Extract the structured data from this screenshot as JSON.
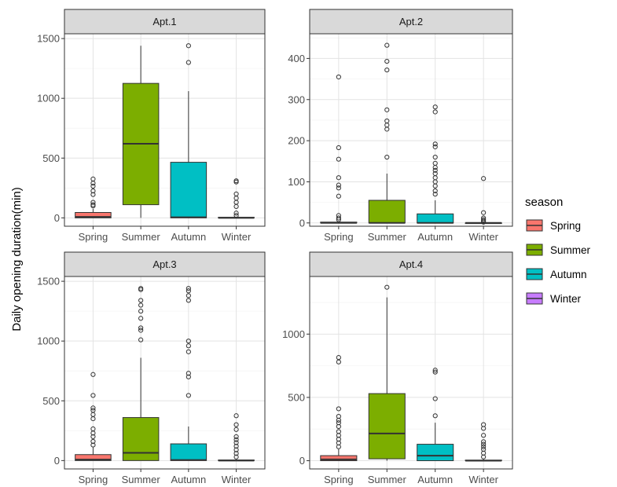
{
  "chart_data": {
    "type": "boxplot",
    "ylabel": "Daily opening duration(min)",
    "categories": [
      "Spring",
      "Summer",
      "Autumn",
      "Winter"
    ],
    "colors": {
      "Spring": "#F8766D",
      "Summer": "#7CAE00",
      "Autumn": "#00BFC4",
      "Winter": "#C77CFF"
    },
    "legend": {
      "title": "season",
      "entries": [
        "Spring",
        "Summer",
        "Autumn",
        "Winter"
      ],
      "placement": "right"
    },
    "grid": true,
    "panels": [
      {
        "title": "Apt.1",
        "ylim": [
          -70,
          1540
        ],
        "yticks": [
          0,
          500,
          1000,
          1500
        ],
        "boxes": {
          "Spring": {
            "q1": 0,
            "median": 8,
            "q3": 45,
            "low": 0,
            "high": 75,
            "outliers": [
              100,
              110,
              130,
              195,
              225,
              265,
              290,
              325
            ]
          },
          "Summer": {
            "q1": 110,
            "median": 620,
            "q3": 1125,
            "low": 0,
            "high": 1440,
            "outliers": []
          },
          "Autumn": {
            "q1": 0,
            "median": 5,
            "q3": 465,
            "low": 0,
            "high": 1060,
            "outliers": [
              1300,
              1440
            ]
          },
          "Winter": {
            "q1": 0,
            "median": 0,
            "q3": 5,
            "low": 0,
            "high": 10,
            "outliers": [
              20,
              40,
              95,
              130,
              165,
              200,
              300,
              310
            ]
          }
        }
      },
      {
        "title": "Apt.2",
        "ylim": [
          -8,
          460
        ],
        "yticks": [
          0,
          100,
          200,
          300,
          400
        ],
        "boxes": {
          "Spring": {
            "q1": 0,
            "median": 0,
            "q3": 2,
            "low": 0,
            "high": 4,
            "outliers": [
              8,
              12,
              18,
              65,
              85,
              92,
              110,
              155,
              183,
              355
            ]
          },
          "Summer": {
            "q1": 0,
            "median": 0,
            "q3": 55,
            "low": 0,
            "high": 120,
            "outliers": [
              160,
              228,
              238,
              248,
              275,
              372,
              393,
              432
            ]
          },
          "Autumn": {
            "q1": 0,
            "median": 0,
            "q3": 22,
            "low": 0,
            "high": 55,
            "outliers": [
              70,
              78,
              90,
              100,
              110,
              120,
              128,
              135,
              145,
              160,
              185,
              192,
              270,
              282
            ]
          },
          "Winter": {
            "q1": 0,
            "median": 0,
            "q3": 0,
            "low": 0,
            "high": 1,
            "outliers": [
              2,
              5,
              8,
              12,
              25,
              108
            ]
          }
        }
      },
      {
        "title": "Apt.3",
        "ylim": [
          -70,
          1540
        ],
        "yticks": [
          0,
          500,
          1000,
          1500
        ],
        "boxes": {
          "Spring": {
            "q1": 0,
            "median": 8,
            "q3": 50,
            "low": 0,
            "high": 110,
            "outliers": [
              130,
              160,
              200,
              230,
              265,
              350,
              385,
              420,
              440,
              545,
              720
            ]
          },
          "Summer": {
            "q1": 0,
            "median": 65,
            "q3": 360,
            "low": 0,
            "high": 860,
            "outliers": [
              1010,
              1090,
              1110,
              1190,
              1250,
              1300,
              1340,
              1430,
              1440
            ]
          },
          "Autumn": {
            "q1": 0,
            "median": 5,
            "q3": 140,
            "low": 0,
            "high": 285,
            "outliers": [
              545,
              700,
              730,
              910,
              960,
              1000,
              1340,
              1380,
              1420,
              1440
            ]
          },
          "Winter": {
            "q1": 0,
            "median": 0,
            "q3": 5,
            "low": 0,
            "high": 10,
            "outliers": [
              30,
              60,
              90,
              120,
              150,
              175,
              200,
              260,
              300,
              375
            ]
          }
        }
      },
      {
        "title": "Apt.4",
        "ylim": [
          -65,
          1455
        ],
        "yticks": [
          0,
          500,
          1000
        ],
        "boxes": {
          "Spring": {
            "q1": 0,
            "median": 10,
            "q3": 40,
            "low": 0,
            "high": 90,
            "outliers": [
              110,
              140,
              170,
              200,
              230,
              270,
              300,
              320,
              350,
              410,
              780,
              815
            ]
          },
          "Summer": {
            "q1": 15,
            "median": 215,
            "q3": 530,
            "low": 0,
            "high": 1290,
            "outliers": [
              1370
            ]
          },
          "Autumn": {
            "q1": 0,
            "median": 40,
            "q3": 130,
            "low": 0,
            "high": 300,
            "outliers": [
              355,
              490,
              700,
              715
            ]
          },
          "Winter": {
            "q1": 0,
            "median": 0,
            "q3": 5,
            "low": 0,
            "high": 12,
            "outliers": [
              30,
              60,
              90,
              110,
              130,
              150,
              200,
              255,
              285
            ]
          }
        }
      }
    ]
  }
}
